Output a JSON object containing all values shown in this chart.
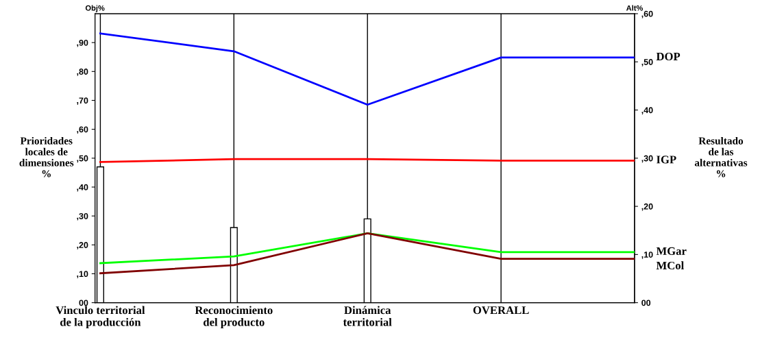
{
  "chart_data": {
    "type": "bar",
    "categories": [
      "Vinculo territorial\nde la producción",
      "Reconocimiento\ndel producto",
      "Dinámica\nterritorial",
      "OVERALL",
      null
    ],
    "ylabel": "Prioridades\nlocales de\ndimensiones\n%",
    "y2label": "Resultado\nde las\nalternativas\n%",
    "annotations": [
      "Obj%",
      "Alt%"
    ],
    "ylim": [
      0,
      100
    ],
    "yticks": [
      {
        "value": 0,
        "label": "00"
      },
      {
        "value": 10,
        "label": ",10"
      },
      {
        "value": 20,
        "label": ",20"
      },
      {
        "value": 30,
        "label": ",30"
      },
      {
        "value": 40,
        "label": ",40"
      },
      {
        "value": 50,
        "label": ",50"
      },
      {
        "value": 60,
        "label": ",60"
      },
      {
        "value": 70,
        "label": ",70"
      },
      {
        "value": 80,
        "label": ",80"
      },
      {
        "value": 90,
        "label": ",90"
      }
    ],
    "y2lim": [
      0,
      60
    ],
    "y2ticks": [
      {
        "value": 0,
        "label": "00"
      },
      {
        "value": 10,
        "label": ",10"
      },
      {
        "value": 20,
        "label": ",20"
      },
      {
        "value": 30,
        "label": ",30"
      },
      {
        "value": 40,
        "label": ",40"
      },
      {
        "value": 50,
        "label": ",50"
      },
      {
        "value": 60,
        "label": ",60"
      }
    ],
    "grid": "x",
    "series": [
      {
        "color": "#ffffff",
        "values": [
          47,
          26,
          29,
          null,
          null
        ]
      },
      {
        "type": "line",
        "axis": "y2",
        "name": "DOP",
        "color": "#0000ff",
        "values": [
          55.9,
          52.2,
          41.1,
          50.9,
          50.9
        ]
      },
      {
        "type": "line",
        "axis": "y2",
        "name": "IGP",
        "color": "#ff0000",
        "values": [
          29.2,
          29.8,
          29.8,
          29.5,
          29.5
        ]
      },
      {
        "type": "line",
        "axis": "y2",
        "name": "MGar",
        "color": "#00ff00",
        "values": [
          8.2,
          9.6,
          14.4,
          10.5,
          10.5
        ]
      },
      {
        "type": "line",
        "axis": "y2",
        "name": "MCol",
        "color": "#800000",
        "values": [
          6.1,
          7.8,
          14.4,
          9.1,
          9.1
        ]
      }
    ]
  }
}
